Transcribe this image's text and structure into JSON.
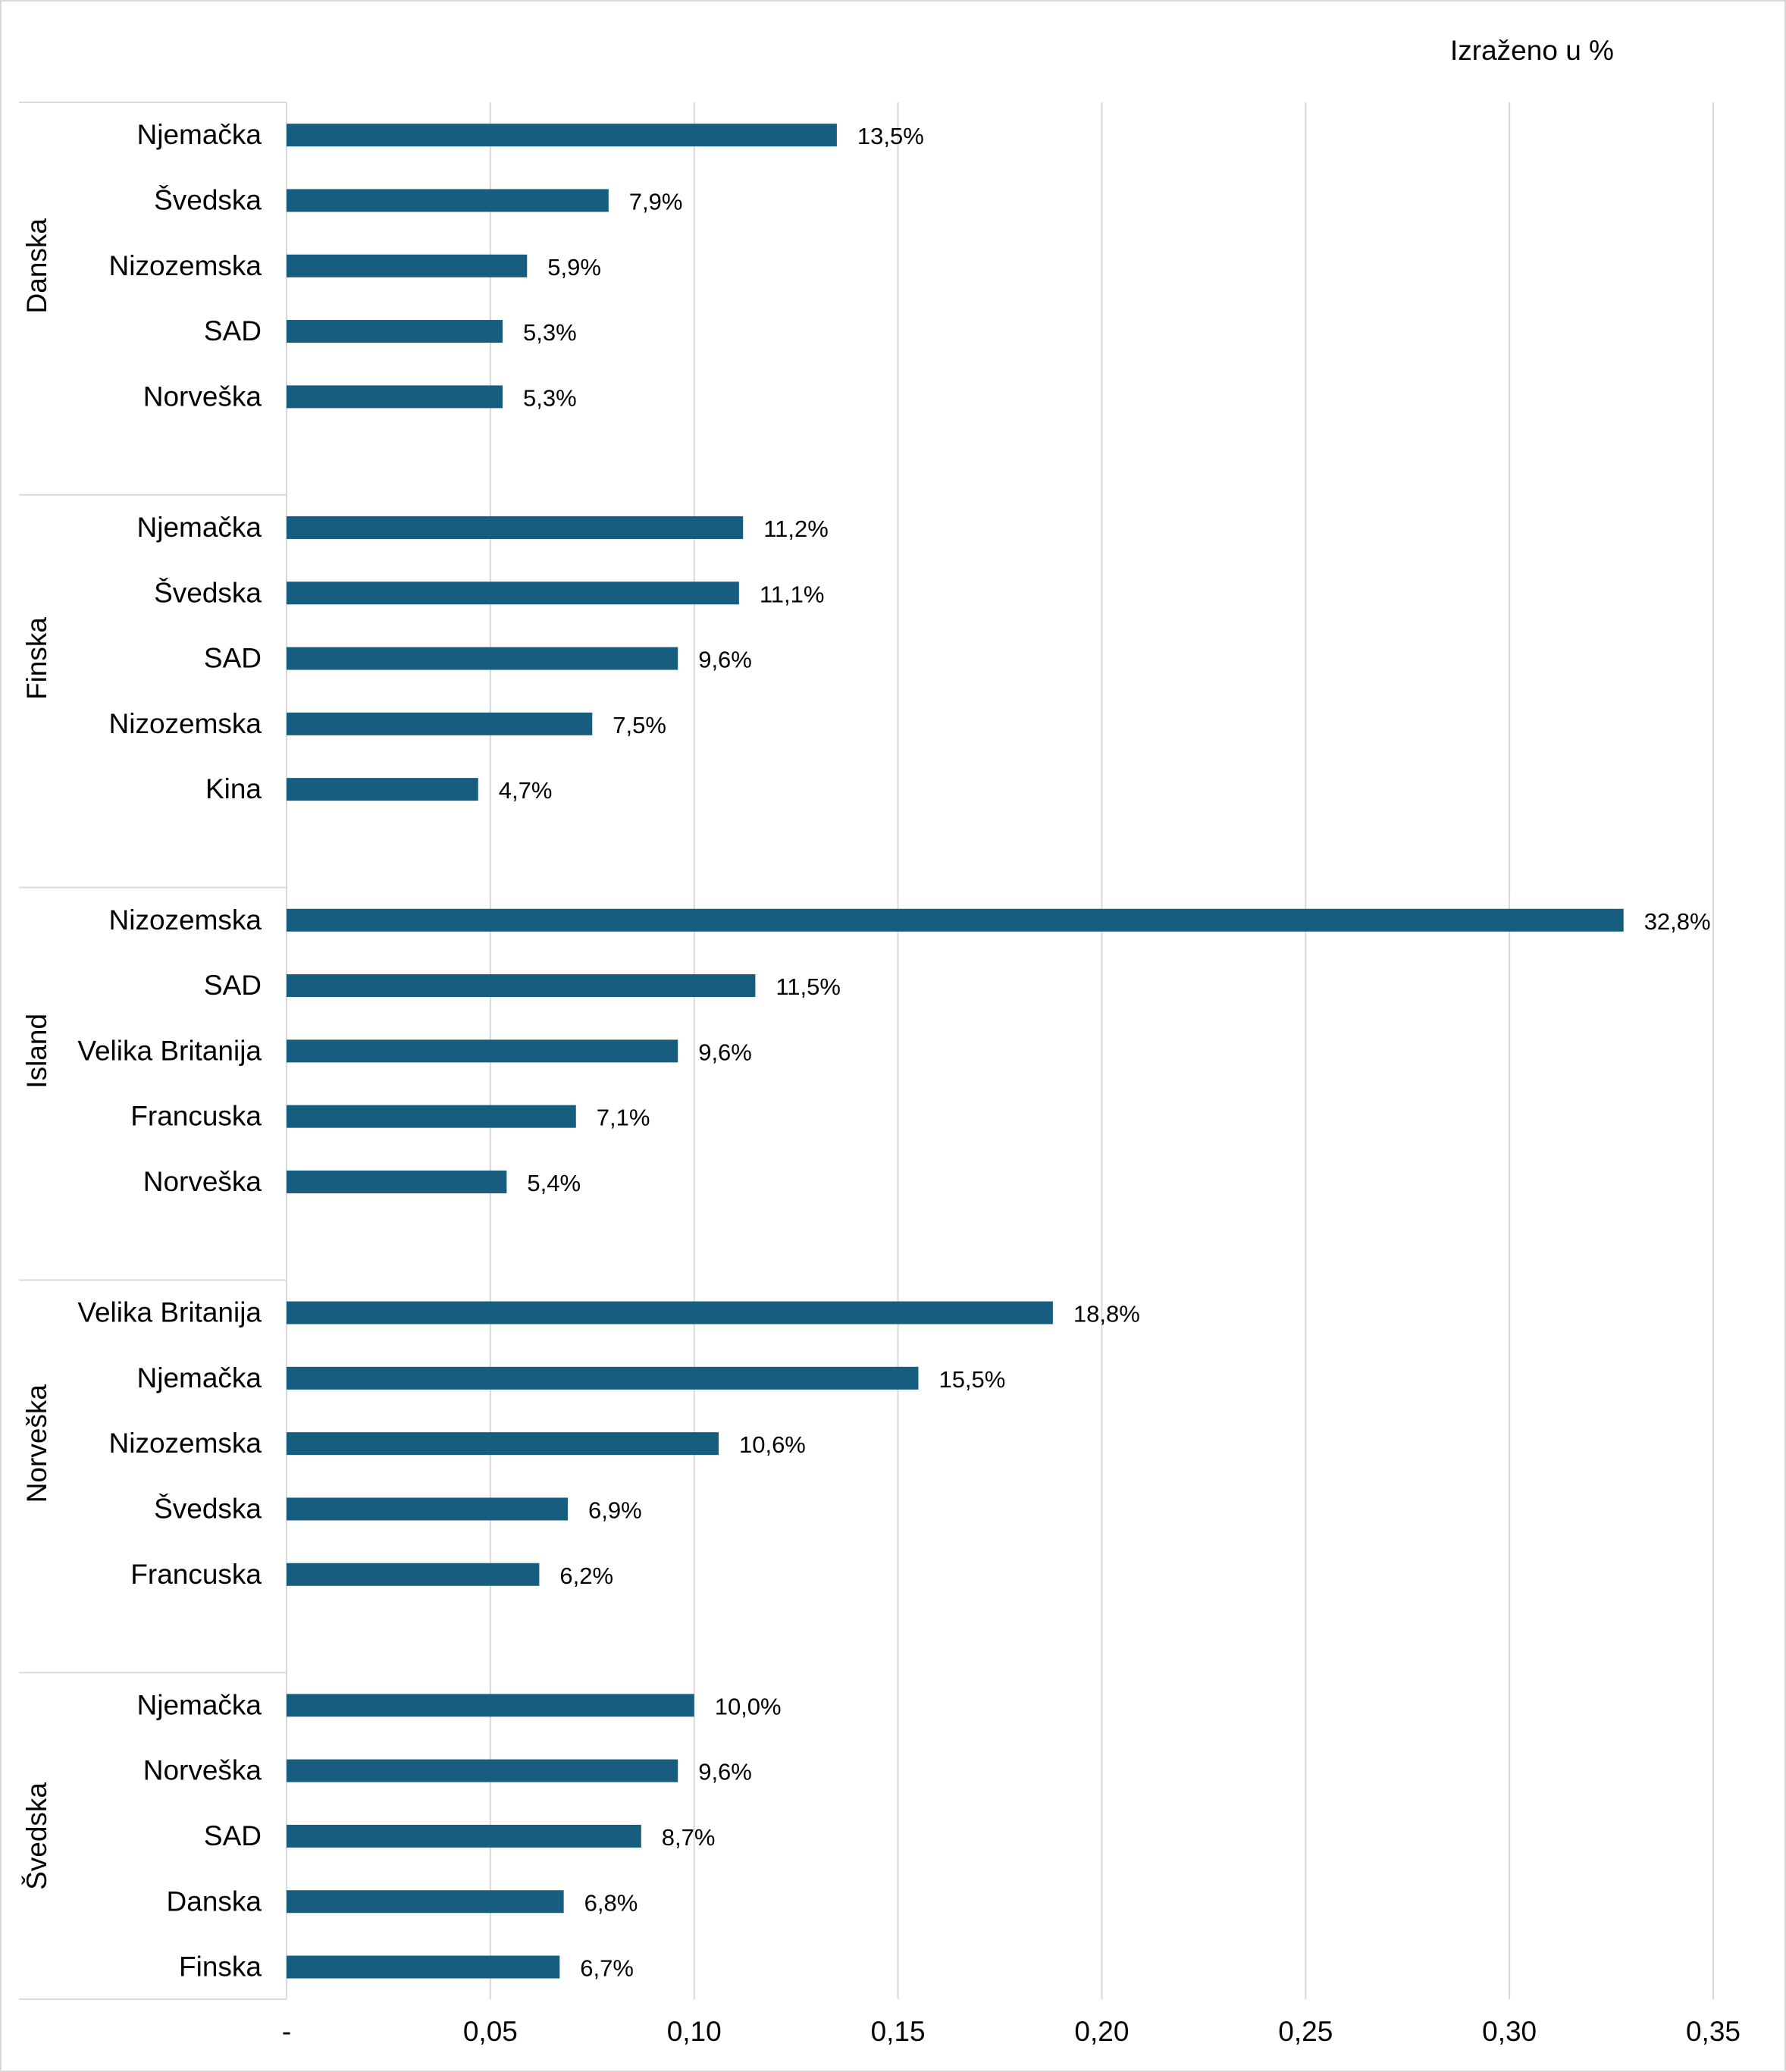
{
  "unit_note": "Izraženo u %",
  "chart_data": {
    "type": "bar",
    "orientation": "horizontal",
    "title": "",
    "xlabel": "",
    "ylabel": "",
    "xlim": [
      0,
      0.35
    ],
    "x_ticks": [
      "-",
      "0,05",
      "0,10",
      "0,15",
      "0,20",
      "0,25",
      "0,30",
      "0,35"
    ],
    "x_tick_values": [
      0,
      0.05,
      0.1,
      0.15,
      0.2,
      0.25,
      0.3,
      0.35
    ],
    "grid": "vertical",
    "bar_color": "#175d80",
    "groups": [
      {
        "name": "Danska",
        "bars": [
          {
            "label": "Njemačka",
            "value": 0.135,
            "data_label": "13,5%"
          },
          {
            "label": "Švedska",
            "value": 0.079,
            "data_label": "7,9%"
          },
          {
            "label": "Nizozemska",
            "value": 0.059,
            "data_label": "5,9%"
          },
          {
            "label": "SAD",
            "value": 0.053,
            "data_label": "5,3%"
          },
          {
            "label": "Norveška",
            "value": 0.053,
            "data_label": "5,3%"
          }
        ]
      },
      {
        "name": "Finska",
        "bars": [
          {
            "label": "Njemačka",
            "value": 0.112,
            "data_label": "11,2%"
          },
          {
            "label": "Švedska",
            "value": 0.111,
            "data_label": "11,1%"
          },
          {
            "label": "SAD",
            "value": 0.096,
            "data_label": "9,6%"
          },
          {
            "label": "Nizozemska",
            "value": 0.075,
            "data_label": "7,5%"
          },
          {
            "label": "Kina",
            "value": 0.047,
            "data_label": "4,7%"
          }
        ]
      },
      {
        "name": "Island",
        "bars": [
          {
            "label": "Nizozemska",
            "value": 0.328,
            "data_label": "32,8%"
          },
          {
            "label": "SAD",
            "value": 0.115,
            "data_label": "11,5%"
          },
          {
            "label": "Velika Britanija",
            "value": 0.096,
            "data_label": "9,6%"
          },
          {
            "label": "Francuska",
            "value": 0.071,
            "data_label": "7,1%"
          },
          {
            "label": "Norveška",
            "value": 0.054,
            "data_label": "5,4%"
          }
        ]
      },
      {
        "name": "Norveška",
        "bars": [
          {
            "label": "Velika Britanija",
            "value": 0.188,
            "data_label": "18,8%"
          },
          {
            "label": "Njemačka",
            "value": 0.155,
            "data_label": "15,5%"
          },
          {
            "label": "Nizozemska",
            "value": 0.106,
            "data_label": "10,6%"
          },
          {
            "label": "Švedska",
            "value": 0.069,
            "data_label": "6,9%"
          },
          {
            "label": "Francuska",
            "value": 0.062,
            "data_label": "6,2%"
          }
        ]
      },
      {
        "name": "Švedska",
        "bars": [
          {
            "label": "Njemačka",
            "value": 0.1,
            "data_label": "10,0%"
          },
          {
            "label": "Norveška",
            "value": 0.096,
            "data_label": "9,6%"
          },
          {
            "label": "SAD",
            "value": 0.087,
            "data_label": "8,7%"
          },
          {
            "label": "Danska",
            "value": 0.068,
            "data_label": "6,8%"
          },
          {
            "label": "Finska",
            "value": 0.067,
            "data_label": "6,7%"
          }
        ]
      }
    ]
  }
}
